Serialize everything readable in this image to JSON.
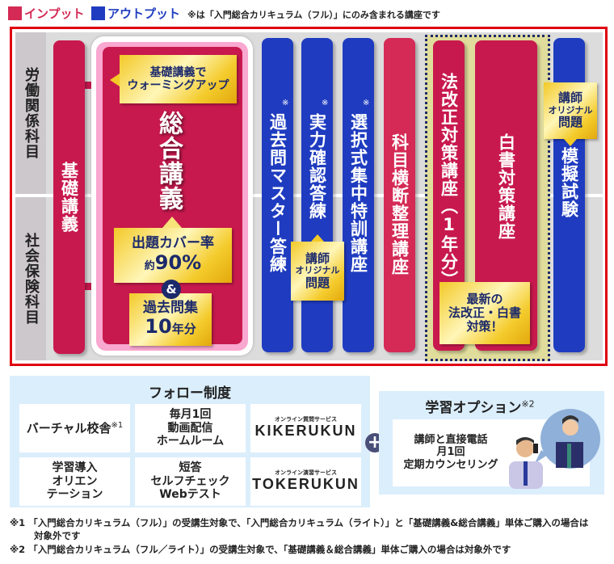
{
  "legend": {
    "input": "インプット",
    "output": "アウトプット",
    "note": "※は「入門総合カリキュラム（フル）」にのみ含まれる講座です",
    "colors": {
      "input": "#d42a55",
      "output": "#1f3cc0"
    }
  },
  "subjects": [
    "労働関係科目",
    "社会保険科目"
  ],
  "courses": {
    "kiso": "基礎講義",
    "sogo": "総合講義",
    "sogo_callout": [
      "基礎講義で",
      "ウォーミングアップ"
    ],
    "sogo_cover": {
      "line1": "出題カバー率",
      "prefix": "約",
      "value": "90%"
    },
    "amp": "&",
    "sogo_past": {
      "line1": "過去問集",
      "value": "10",
      "suffix": "年分"
    },
    "kakomon": "過去問マスター答練",
    "jitsuryoku": "実力確認答練",
    "sentaku": "選択式集中特訓講座",
    "kamoku": "科目横断整理講座",
    "hokaisei": "法改正対策講座（1年分）",
    "hakusho": "白書対策講座",
    "moshi": "模擬試験",
    "kome": "※",
    "original_callout": {
      "line1": "講師",
      "line2": "オリジナル",
      "line3": "問題"
    },
    "latest_callout": [
      "最新の",
      "法改正・白書",
      "対策！"
    ]
  },
  "follow": {
    "title": "フォロー制度",
    "items": [
      {
        "text": "バーチャル校舎",
        "sup": "※1"
      },
      {
        "lines": [
          "毎月1回",
          "動画配信",
          "ホームルーム"
        ]
      },
      {
        "sub": "オンライン質問サービス",
        "logo": "KIKERUKUN"
      },
      {
        "lines": [
          "学習導入",
          "オリエン",
          "テーション"
        ]
      },
      {
        "lines": [
          "短答",
          "セルフチェック",
          "Webテスト"
        ]
      },
      {
        "sub": "オンライン演習サービス",
        "logo": "TOKERUKUN"
      }
    ]
  },
  "plus": "+",
  "option": {
    "title": "学習オプション",
    "sup": "※2",
    "lines": [
      "講師と直接電話",
      "月1回",
      "定期カウンセリング"
    ]
  },
  "footnotes": [
    {
      "mark": "※1",
      "text": "「入門総合カリキュラム（フル）」の受講生対象で、「入門総合カリキュラム（ライト）」と「基礎講義&総合講義」単体ご購入の場合は",
      "text2": "対象外です"
    },
    {
      "mark": "※2",
      "text": "「入門総合カリキュラム（フル／ライト）」の受講生対象で、「基礎講義＆総合講義」単体ご購入の場合は対象外です"
    }
  ]
}
